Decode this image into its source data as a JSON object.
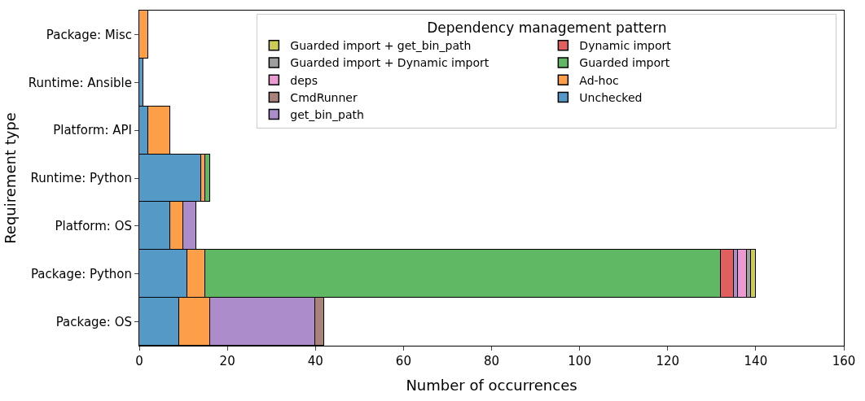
{
  "chart_data": {
    "type": "bar",
    "orientation": "horizontal",
    "stacked": true,
    "xlabel": "Number of occurrences",
    "ylabel": "Requirement type",
    "legend_title": "Dependency management pattern",
    "legend": "top right",
    "grid": false,
    "categories": [
      "Package: Misc",
      "Runtime: Ansible",
      "Platform: API",
      "Runtime: Python",
      "Platform: OS",
      "Package: Python",
      "Package: OS"
    ],
    "xlim": [
      0,
      160
    ],
    "xticks": [
      0,
      20,
      40,
      60,
      80,
      100,
      120,
      140,
      160
    ],
    "series": [
      {
        "name": "Unchecked",
        "color": "#5599c7",
        "values": [
          0,
          1,
          2,
          14,
          7,
          11,
          9
        ]
      },
      {
        "name": "Ad-hoc",
        "color": "#fd9e48",
        "values": [
          2,
          0,
          5,
          1,
          3,
          4,
          7
        ]
      },
      {
        "name": "Guarded import",
        "color": "#61b864",
        "values": [
          0,
          0,
          0,
          1,
          0,
          117,
          0
        ]
      },
      {
        "name": "Dynamic import",
        "color": "#e05f5f",
        "values": [
          0,
          0,
          0,
          0,
          0,
          3,
          0
        ]
      },
      {
        "name": "get_bin_path",
        "color": "#ad8ccc",
        "values": [
          0,
          0,
          0,
          0,
          3,
          1,
          24
        ]
      },
      {
        "name": "CmdRunner",
        "color": "#a9837a",
        "values": [
          0,
          0,
          0,
          0,
          0,
          0,
          2
        ]
      },
      {
        "name": "deps",
        "color": "#ea9ad0",
        "values": [
          0,
          0,
          0,
          0,
          0,
          2,
          0
        ]
      },
      {
        "name": "Guarded import + Dynamic import",
        "color": "#9e9e9e",
        "values": [
          0,
          0,
          0,
          0,
          0,
          1,
          0
        ]
      },
      {
        "name": "Guarded import + get_bin_path",
        "color": "#cccc55",
        "values": [
          0,
          0,
          0,
          0,
          0,
          1,
          0
        ]
      }
    ]
  }
}
